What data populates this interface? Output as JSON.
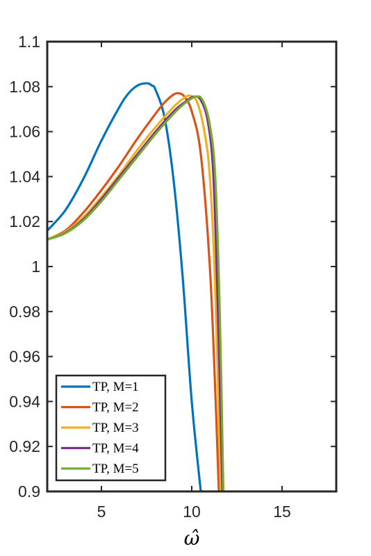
{
  "chart_data": {
    "type": "line",
    "title": "",
    "xlabel": "ω̂",
    "ylabel": "",
    "xlim": [
      2,
      18
    ],
    "ylim": [
      0.9,
      1.1
    ],
    "xticks": [
      5,
      10,
      15
    ],
    "xtick_labels": [
      "5",
      "10",
      "15"
    ],
    "yticks": [
      0.9,
      0.92,
      0.94,
      0.96,
      0.98,
      1.0,
      1.02,
      1.04,
      1.06,
      1.08,
      1.1
    ],
    "ytick_labels": [
      "0.9",
      "0.92",
      "0.94",
      "0.96",
      "0.98",
      "1",
      "1.02",
      "1.04",
      "1.06",
      "1.08",
      "1.1"
    ],
    "grid": false,
    "legend_position": "bottom-left",
    "series": [
      {
        "name": "TP, M=1",
        "color": "#0072BD",
        "x": [
          2,
          3,
          4,
          5,
          6,
          6.5,
          7,
          7.5,
          7.8,
          8,
          8.5,
          9,
          9.5,
          10,
          10.5
        ],
        "y": [
          1.016,
          1.025,
          1.039,
          1.056,
          1.071,
          1.077,
          1.0805,
          1.0815,
          1.0805,
          1.0785,
          1.066,
          1.038,
          0.995,
          0.94,
          0.9
        ]
      },
      {
        "name": "TP, M=2",
        "color": "#D95319",
        "x": [
          2,
          3,
          4,
          5,
          6,
          7,
          8,
          8.5,
          9,
          9.3,
          9.6,
          10,
          10.5,
          11,
          11.3,
          11.5
        ],
        "y": [
          1.012,
          1.016,
          1.024,
          1.034,
          1.045,
          1.057,
          1.068,
          1.073,
          1.0765,
          1.077,
          1.0755,
          1.069,
          1.05,
          1.0,
          0.945,
          0.9
        ]
      },
      {
        "name": "TP, M=3",
        "color": "#EDB120",
        "x": [
          2,
          3,
          4,
          5,
          6,
          7,
          8,
          9,
          9.5,
          9.9,
          10.3,
          10.7,
          11,
          11.3,
          11.6
        ],
        "y": [
          1.012,
          1.0155,
          1.022,
          1.031,
          1.041,
          1.052,
          1.062,
          1.071,
          1.0745,
          1.076,
          1.073,
          1.06,
          1.04,
          0.99,
          0.9
        ]
      },
      {
        "name": "TP, M=4",
        "color": "#7E2F8E",
        "x": [
          2,
          3,
          4,
          5,
          6,
          7,
          8,
          9,
          9.6,
          10.1,
          10.5,
          10.9,
          11.2,
          11.45,
          11.7
        ],
        "y": [
          1.012,
          1.015,
          1.021,
          1.03,
          1.04,
          1.05,
          1.06,
          1.069,
          1.073,
          1.0755,
          1.074,
          1.064,
          1.04,
          0.98,
          0.9
        ]
      },
      {
        "name": "TP, M=5",
        "color": "#77AC30",
        "x": [
          2,
          3,
          4,
          5,
          6,
          7,
          8,
          9,
          9.6,
          10.2,
          10.6,
          11,
          11.3,
          11.55,
          11.75
        ],
        "y": [
          1.012,
          1.0148,
          1.0205,
          1.029,
          1.039,
          1.049,
          1.059,
          1.068,
          1.0725,
          1.0755,
          1.074,
          1.063,
          1.04,
          0.98,
          0.9
        ]
      }
    ]
  }
}
